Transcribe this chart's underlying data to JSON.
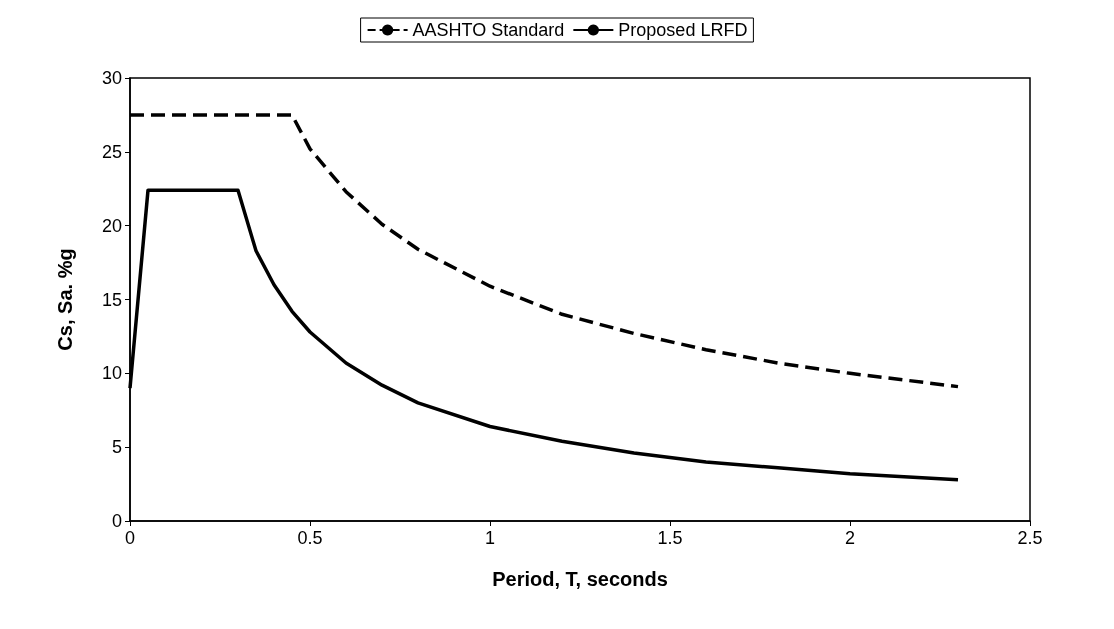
{
  "chart_data": {
    "type": "line",
    "xlabel": "Period, T, seconds",
    "ylabel": "Cs, Sa. %g",
    "xlim": [
      0,
      2.5
    ],
    "xticks": [
      0,
      0.5,
      1,
      1.5,
      2,
      2.5
    ],
    "ylim": [
      0,
      30
    ],
    "yticks": [
      0,
      5,
      10,
      15,
      20,
      25,
      30
    ],
    "grid": false,
    "legend": "top",
    "marker": "none",
    "series": [
      {
        "name": "AASHTO Standard",
        "color": "#000000",
        "line_style": "dashed",
        "x": [
          0,
          0.45,
          0.5,
          0.6,
          0.7,
          0.8,
          1.0,
          1.2,
          1.4,
          1.6,
          1.8,
          2.0,
          2.3
        ],
        "values": [
          27.5,
          27.5,
          25.2,
          22.3,
          20.1,
          18.4,
          15.9,
          14.0,
          12.7,
          11.6,
          10.7,
          10.0,
          9.1
        ]
      },
      {
        "name": "Proposed LRFD",
        "color": "#000000",
        "line_style": "solid",
        "x": [
          0,
          0.05,
          0.3,
          0.35,
          0.4,
          0.45,
          0.5,
          0.6,
          0.7,
          0.8,
          1.0,
          1.2,
          1.4,
          1.6,
          1.8,
          2.0,
          2.3
        ],
        "values": [
          9,
          22.4,
          22.4,
          18.3,
          16.0,
          14.2,
          12.8,
          10.7,
          9.2,
          8.0,
          6.4,
          5.4,
          4.6,
          4.0,
          3.6,
          3.2,
          2.8
        ]
      }
    ]
  }
}
